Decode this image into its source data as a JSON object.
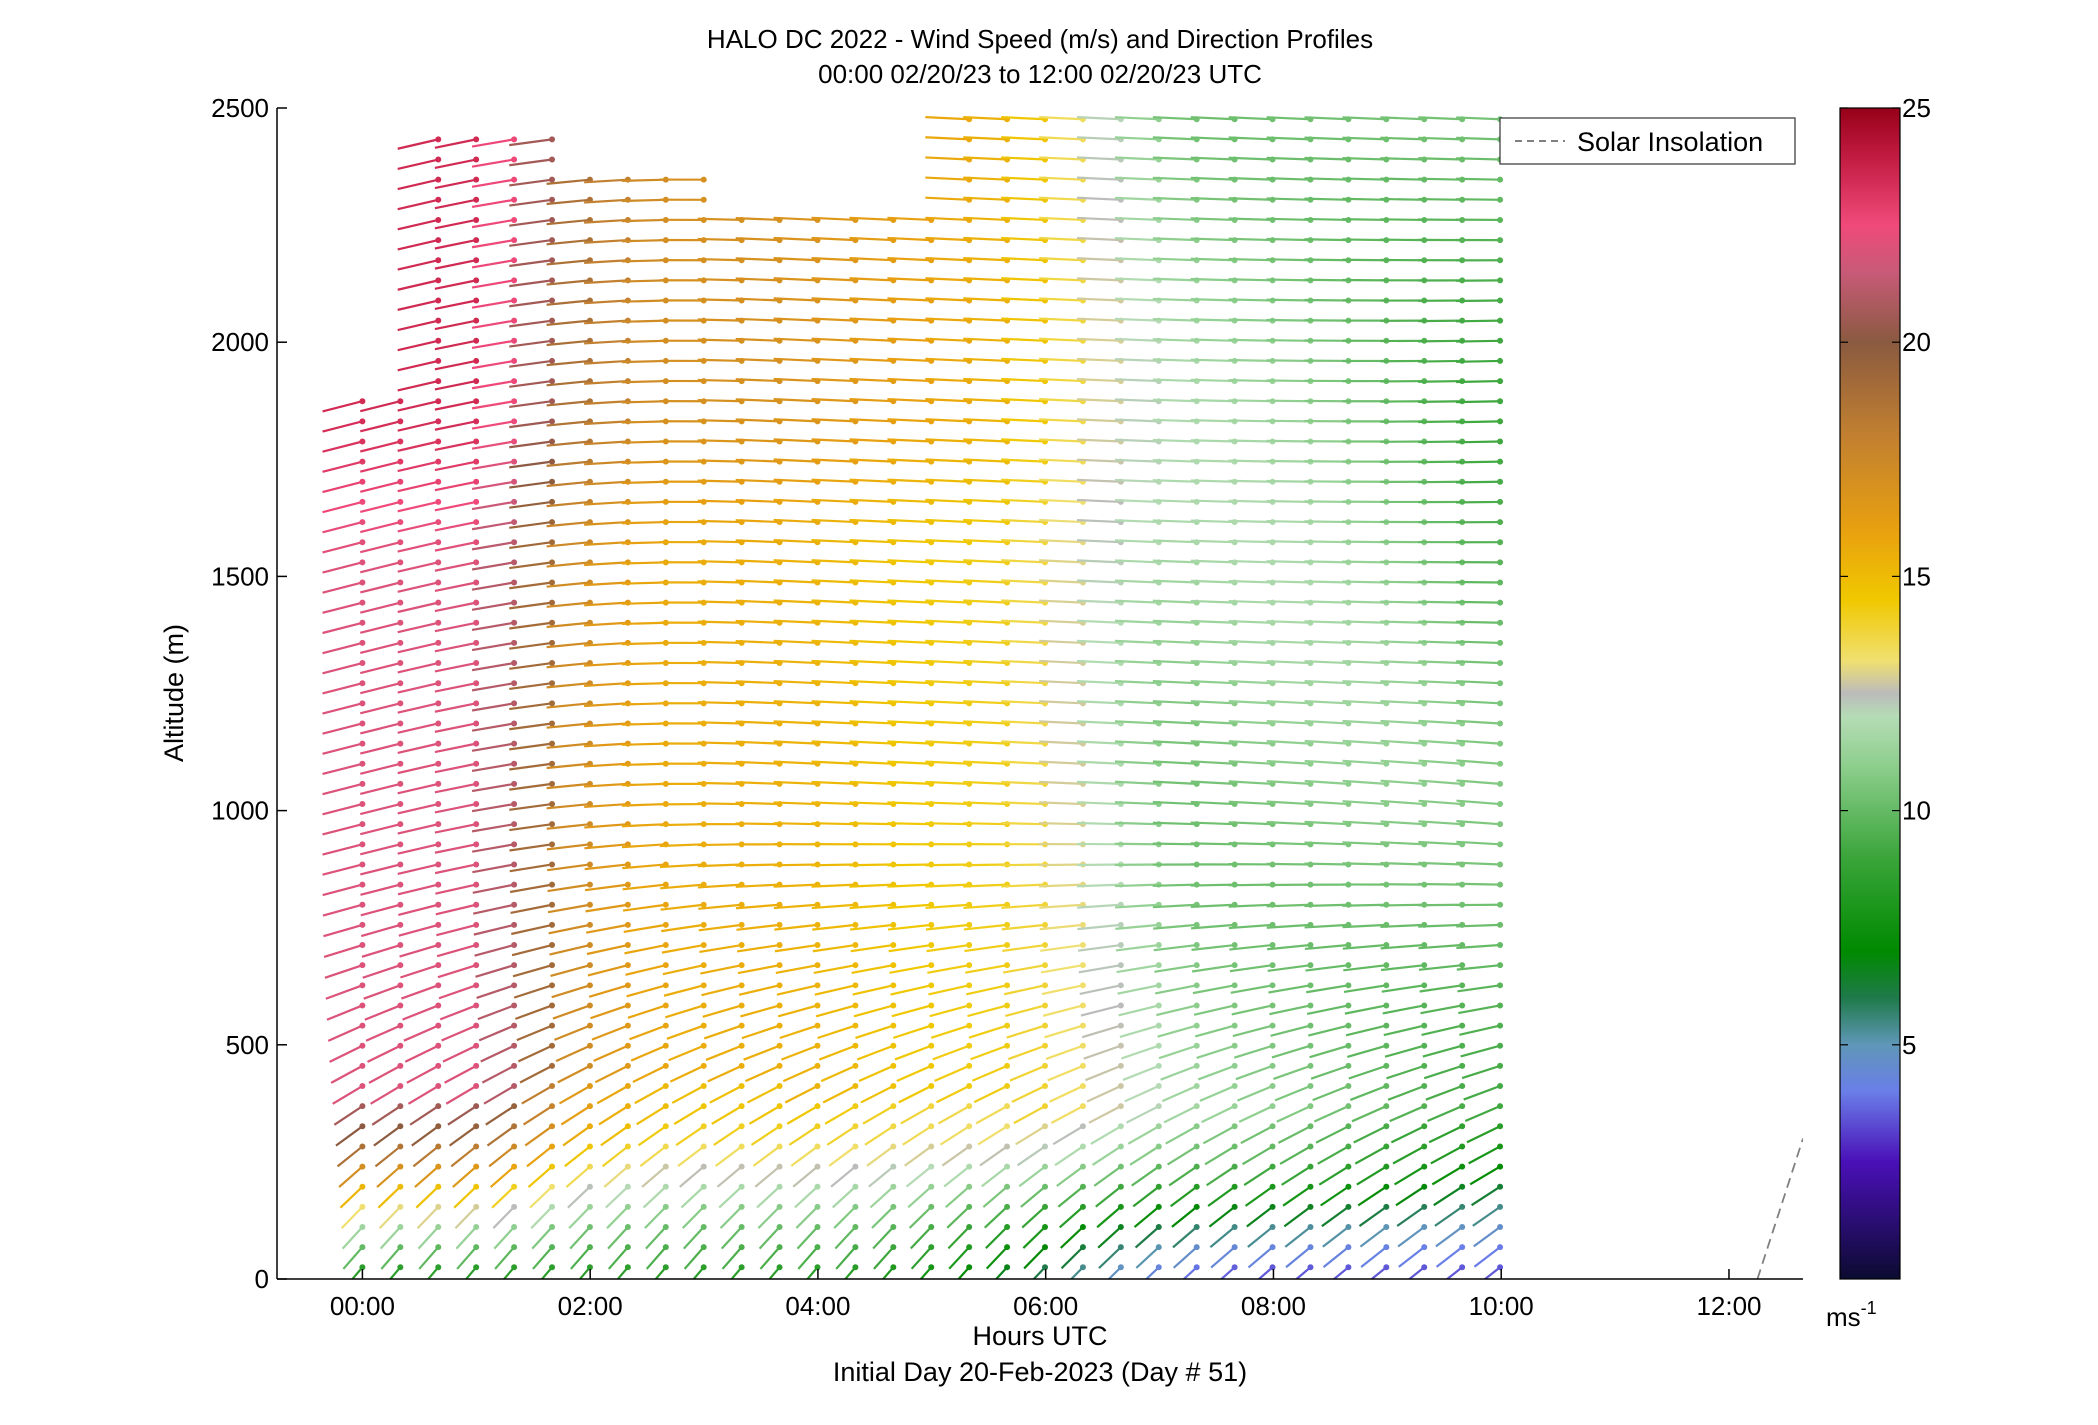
{
  "chart_data": {
    "type": "wind_barb_profile",
    "title": "HALO DC 2022 - Wind Speed (m/s) and Direction Profiles",
    "subtitle": "00:00 02/20/23 to 12:00 02/20/23  UTC",
    "xlabel": "Hours UTC",
    "xlabel2": "Initial Day 20-Feb-2023 (Day # 51)",
    "ylabel": "Altitude (m)",
    "xlim": [
      -0.75,
      12.65
    ],
    "ylim": [
      0,
      2500
    ],
    "x_ticks": [
      {
        "value": 0,
        "label": "00:00"
      },
      {
        "value": 2,
        "label": "02:00"
      },
      {
        "value": 4,
        "label": "04:00"
      },
      {
        "value": 6,
        "label": "06:00"
      },
      {
        "value": 8,
        "label": "08:00"
      },
      {
        "value": 10,
        "label": "10:00"
      },
      {
        "value": 12,
        "label": "12:00"
      }
    ],
    "y_ticks": [
      {
        "value": 0,
        "label": "0"
      },
      {
        "value": 500,
        "label": "500"
      },
      {
        "value": 1000,
        "label": "1000"
      },
      {
        "value": 1500,
        "label": "1500"
      },
      {
        "value": 2000,
        "label": "2000"
      },
      {
        "value": 2500,
        "label": "2500"
      }
    ],
    "legend": {
      "label": "Solar Insolation",
      "placement": "top-right",
      "line_color": "#808080",
      "line_style": "dashed"
    },
    "solar_insolation": {
      "x": [
        12.25,
        12.65
      ],
      "y": [
        0,
        300
      ]
    },
    "colorbar": {
      "min": 0,
      "max": 25,
      "ticks": [
        {
          "value": 5,
          "label": "5"
        },
        {
          "value": 10,
          "label": "10"
        },
        {
          "value": 15,
          "label": "15"
        },
        {
          "value": 20,
          "label": "20"
        },
        {
          "value": 25,
          "label": "25"
        }
      ],
      "unit_label": "ms",
      "unit_exponent": "-1",
      "stops": [
        {
          "value": 0,
          "color": "#0b0b30"
        },
        {
          "value": 2.5,
          "color": "#4a10b8"
        },
        {
          "value": 4,
          "color": "#6a7ee8"
        },
        {
          "value": 5,
          "color": "#5f97b8"
        },
        {
          "value": 6,
          "color": "#1f7a4a"
        },
        {
          "value": 7,
          "color": "#008a00"
        },
        {
          "value": 9,
          "color": "#3aa53a"
        },
        {
          "value": 11,
          "color": "#8fcf8f"
        },
        {
          "value": 12,
          "color": "#b5dcb5"
        },
        {
          "value": 12.5,
          "color": "#bbbbbb"
        },
        {
          "value": 13.2,
          "color": "#f0e070"
        },
        {
          "value": 14.5,
          "color": "#f0c800"
        },
        {
          "value": 16,
          "color": "#e8a010"
        },
        {
          "value": 18,
          "color": "#c28030"
        },
        {
          "value": 20,
          "color": "#8a5a40"
        },
        {
          "value": 21.5,
          "color": "#c85a78"
        },
        {
          "value": 22.5,
          "color": "#f04a7a"
        },
        {
          "value": 24,
          "color": "#c01a40"
        },
        {
          "value": 25,
          "color": "#960018"
        }
      ]
    },
    "wind_field": {
      "time_start": 0,
      "time_step": 0.333,
      "time_count": 31,
      "alt_start": 25,
      "alt_step": 43,
      "alt_count": 58,
      "description_of_regimes": [
        {
          "time_range": [
            0,
            2
          ],
          "alt_range": [
            0,
            2500
          ],
          "speed_range": [
            8,
            23
          ],
          "direction_deg_range": [
            200,
            270
          ]
        },
        {
          "time_range": [
            2,
            7
          ],
          "alt_range": [
            400,
            2500
          ],
          "speed_range": [
            13,
            20
          ],
          "direction_deg_range": [
            250,
            275
          ]
        },
        {
          "time_range": [
            5,
            12
          ],
          "alt_range": [
            0,
            400
          ],
          "speed_range": [
            3,
            8
          ],
          "direction_deg_range": [
            200,
            250
          ]
        },
        {
          "time_range": [
            6.5,
            12
          ],
          "alt_range": [
            400,
            2300
          ],
          "speed_range": [
            7,
            12
          ],
          "direction_deg_range": [
            255,
            290
          ]
        }
      ]
    }
  }
}
